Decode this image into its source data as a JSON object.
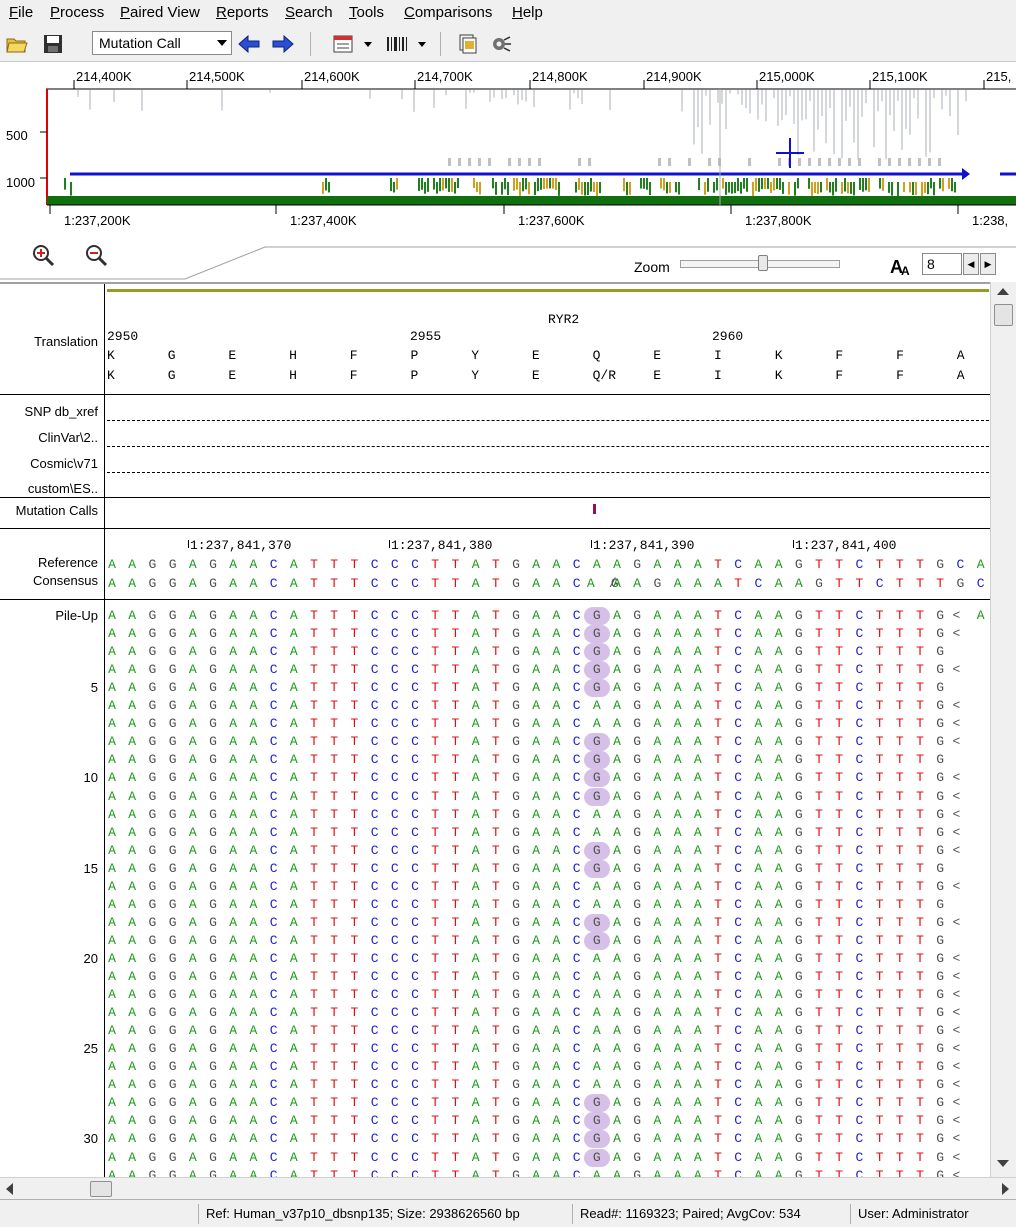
{
  "menu": [
    "File",
    "Process",
    "Paired View",
    "Reports",
    "Search",
    "Tools",
    "Comparisons",
    "Help"
  ],
  "toolbar": {
    "mode": "Mutation Call",
    "icons": [
      "open-folder-icon",
      "save-icon",
      "back-arrow-icon",
      "forward-arrow-icon",
      "report-icon",
      "barcode-icon",
      "export-icon",
      "settings-icon"
    ]
  },
  "overview": {
    "top_ticks": [
      "214,400K",
      "214,500K",
      "214,600K",
      "214,700K",
      "214,800K",
      "214,900K",
      "215,000K",
      "215,100K",
      "215,"
    ],
    "bottom_ticks": [
      "1:237,200K",
      "1:237,400K",
      "1:237,600K",
      "1:237,800K",
      "1:238,"
    ],
    "y_labels": [
      "500",
      "1000"
    ]
  },
  "controls": {
    "zoom_label": "Zoom",
    "zoom_value": 0.52,
    "font_size_value": "8"
  },
  "tracks": {
    "translation_label": "Translation",
    "snp_label": "SNP db_xref",
    "clinvar_label": "ClinVar\\2..",
    "cosmic_label": "Cosmic\\v71",
    "custom_label": "custom\\ES..",
    "mutation_label": "Mutation Calls",
    "reference_label": "Reference",
    "consensus_label": "Consensus",
    "pileup_label": "Pile-Up"
  },
  "translation": {
    "gene": "RYR2",
    "codon_numbers": [
      "2950",
      "2955",
      "2960"
    ],
    "ref_aa": [
      "K",
      "G",
      "E",
      "H",
      "F",
      "P",
      "Y",
      "E",
      "Q",
      "E",
      "I",
      "K",
      "F",
      "F",
      "A"
    ],
    "alt_aa": [
      "K",
      "G",
      "E",
      "H",
      "F",
      "P",
      "Y",
      "E",
      "Q/R",
      "E",
      "I",
      "K",
      "F",
      "F",
      "A"
    ]
  },
  "coordinates": [
    "1:237,841,370",
    "1:237,841,380",
    "1:237,841,390",
    "1:237,841,400"
  ],
  "reference_seq": "AAGGAGAACATTTCCCTTATGAACAAGAAATCAAGTTCTTTGCA",
  "consensus_seq": "AAGGAGAACATTTCCCTTATGAACA/GAAGAAATCAAGTTCTTTGCA",
  "pileup": {
    "row_numbers": [
      "5",
      "10",
      "15",
      "20",
      "25",
      "30"
    ],
    "read_prefix": "AAGGAGAACATTTCCCTTATGAAC",
    "read_suffix": "AGAAATCAAGTTCTTTG",
    "variant_rows": [
      1,
      2,
      3,
      4,
      5,
      8,
      9,
      10,
      11,
      14,
      15,
      18,
      19,
      28,
      29,
      30,
      31
    ],
    "row1_tail": "A"
  },
  "status": {
    "ref": "Ref: Human_v37p10_dbsnp135; Size: 2938626560 bp",
    "reads": "Read#: 1169323; Paired; AvgCov: 534",
    "user": "User: Administrator"
  }
}
